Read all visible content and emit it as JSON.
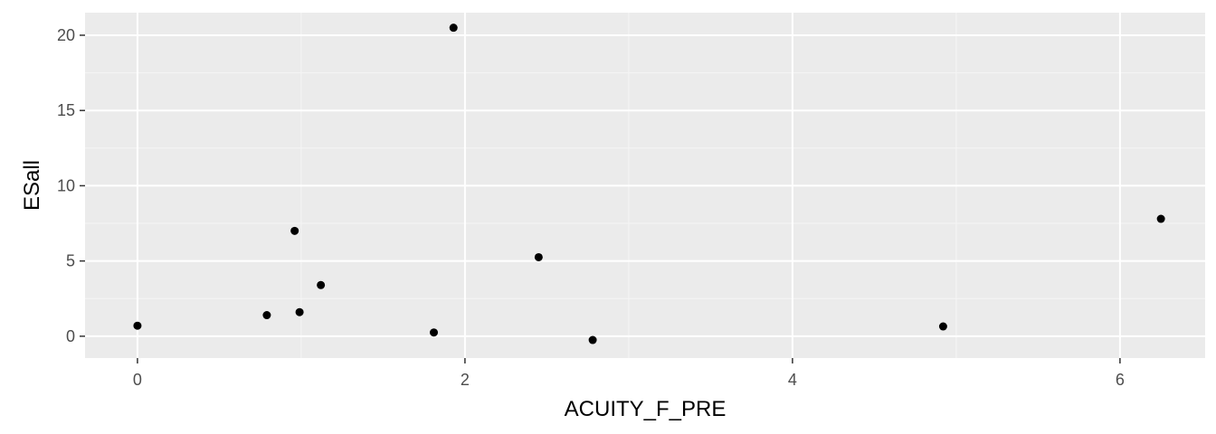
{
  "chart_data": {
    "type": "scatter",
    "title": "",
    "xlabel": "ACUITY_F_PRE",
    "ylabel": "ESall",
    "xlim": [
      -0.32,
      6.52
    ],
    "ylim": [
      -1.45,
      21.5
    ],
    "x_ticks": [
      0,
      2,
      4,
      6
    ],
    "x_tick_labels": [
      "0",
      "2",
      "4",
      "6"
    ],
    "y_ticks": [
      0,
      5,
      10,
      15,
      20
    ],
    "y_tick_labels": [
      "0",
      "5",
      "10",
      "15",
      "20"
    ],
    "grid": true,
    "points": [
      {
        "x": 0.0,
        "y": 0.7
      },
      {
        "x": 0.79,
        "y": 1.4
      },
      {
        "x": 0.96,
        "y": 7.0
      },
      {
        "x": 0.99,
        "y": 1.6
      },
      {
        "x": 1.12,
        "y": 3.4
      },
      {
        "x": 1.81,
        "y": 0.25
      },
      {
        "x": 1.93,
        "y": 20.5
      },
      {
        "x": 2.45,
        "y": 5.25
      },
      {
        "x": 2.78,
        "y": -0.25
      },
      {
        "x": 4.92,
        "y": 0.65
      },
      {
        "x": 6.25,
        "y": 7.8
      }
    ],
    "colors": {
      "panel_background": "#ebebeb",
      "grid_major": "#ffffff",
      "grid_minor": "#f5f5f5",
      "point": "#000000",
      "tick": "#333333"
    }
  }
}
